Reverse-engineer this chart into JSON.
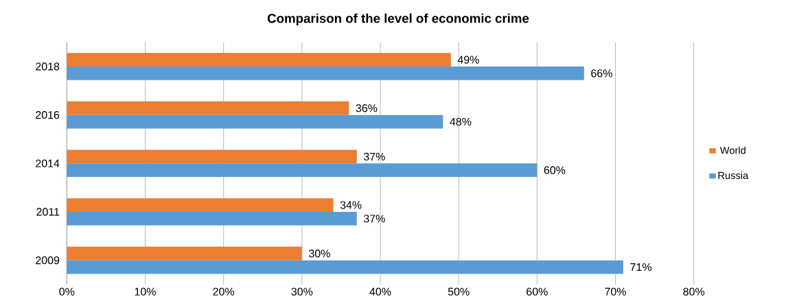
{
  "chart_data": {
    "type": "bar",
    "orientation": "horizontal",
    "title": "Comparison of the level of economic crime",
    "categories": [
      "2018",
      "2016",
      "2014",
      "2011",
      "2009"
    ],
    "series": [
      {
        "name": "World",
        "color": "#ed7d31",
        "values": [
          49,
          36,
          37,
          34,
          30
        ],
        "value_labels": [
          "49%",
          "36%",
          "37%",
          "34%",
          "30%"
        ]
      },
      {
        "name": "Russia",
        "color": "#5b9bd5",
        "values": [
          66,
          48,
          60,
          37,
          71
        ],
        "value_labels": [
          "66%",
          "48%",
          "60%",
          "37%",
          "71%"
        ]
      }
    ],
    "xlim": [
      0,
      80
    ],
    "xticks": [
      {
        "value": 0,
        "label": "0%"
      },
      {
        "value": 10,
        "label": "10%"
      },
      {
        "value": 20,
        "label": "20%"
      },
      {
        "value": 30,
        "label": "30%"
      },
      {
        "value": 40,
        "label": "40%"
      },
      {
        "value": 50,
        "label": "50%"
      },
      {
        "value": 60,
        "label": "60%"
      },
      {
        "value": 70,
        "label": "70%"
      },
      {
        "value": 80,
        "label": "80%"
      }
    ],
    "grid": "x",
    "legend": "right"
  }
}
